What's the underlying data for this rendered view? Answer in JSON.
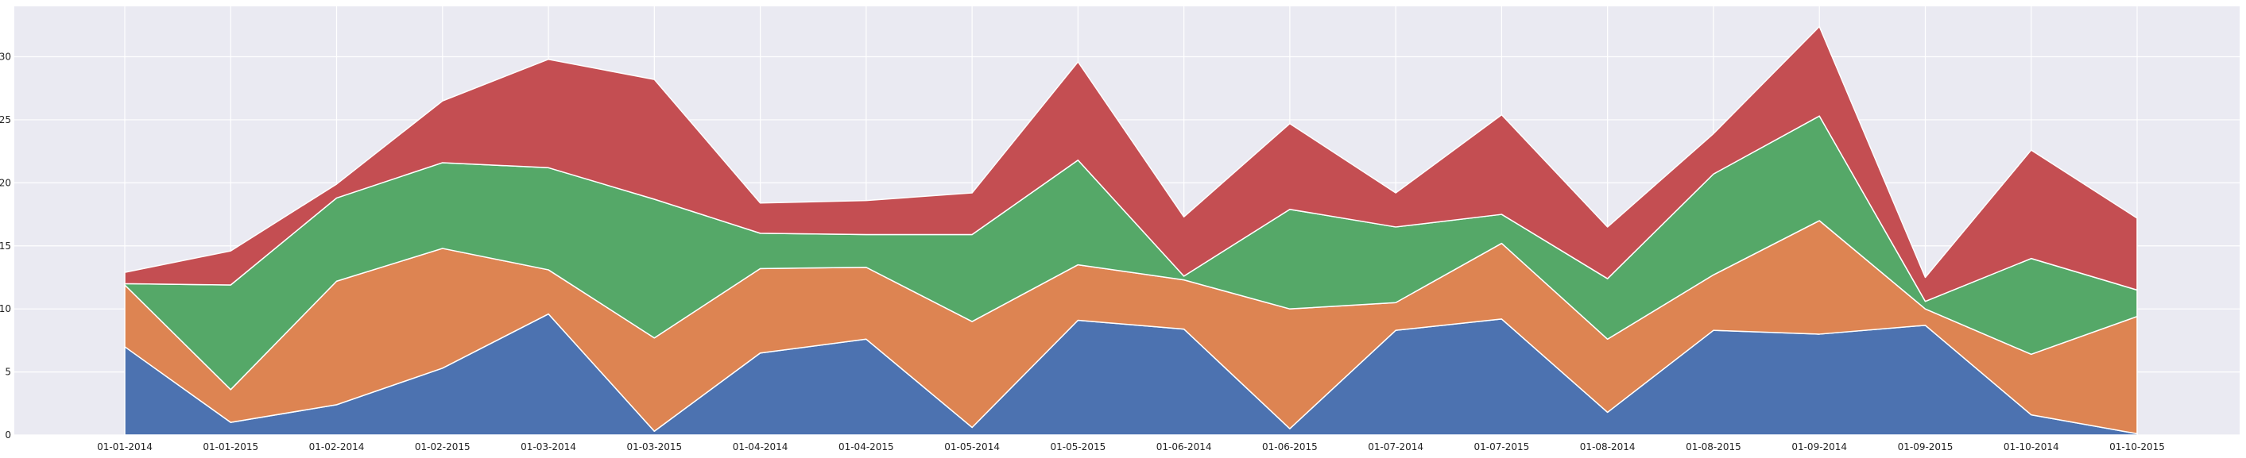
{
  "chart_data": {
    "type": "area",
    "stacked": true,
    "title": "",
    "xlabel": "",
    "ylabel": "",
    "categories": [
      "01-01-2014",
      "01-01-2015",
      "01-02-2014",
      "01-02-2015",
      "01-03-2014",
      "01-03-2015",
      "01-04-2014",
      "01-04-2015",
      "01-05-2014",
      "01-05-2015",
      "01-06-2014",
      "01-06-2015",
      "01-07-2014",
      "01-07-2015",
      "01-08-2014",
      "01-08-2015",
      "01-09-2014",
      "01-09-2015",
      "01-10-2014",
      "01-10-2015"
    ],
    "ylim": [
      0,
      34
    ],
    "yticks": [
      0,
      5,
      10,
      15,
      20,
      25,
      30
    ],
    "grid": true,
    "series": [
      {
        "color": "#4c72b0",
        "values": [
          7.0,
          1.0,
          2.4,
          5.3,
          9.6,
          0.3,
          6.5,
          7.6,
          0.6,
          9.1,
          8.4,
          0.5,
          8.3,
          9.2,
          1.8,
          8.3,
          8.0,
          8.7,
          1.6,
          0.1
        ]
      },
      {
        "color": "#dd8452",
        "values": [
          4.9,
          2.6,
          9.8,
          9.5,
          3.5,
          7.4,
          6.7,
          5.7,
          8.4,
          4.4,
          3.9,
          9.5,
          2.2,
          6.0,
          5.8,
          4.4,
          9.0,
          1.3,
          4.8,
          9.3
        ]
      },
      {
        "color": "#55a868",
        "values": [
          0.1,
          8.3,
          6.6,
          6.8,
          8.1,
          11.0,
          2.8,
          2.6,
          6.9,
          8.3,
          0.3,
          7.9,
          6.0,
          2.3,
          4.8,
          8.0,
          8.3,
          0.6,
          7.6,
          2.1
        ]
      },
      {
        "color": "#c44e52",
        "values": [
          0.9,
          2.7,
          1.1,
          4.9,
          8.6,
          9.5,
          2.4,
          2.7,
          3.3,
          7.8,
          4.7,
          6.8,
          2.7,
          7.9,
          4.1,
          3.2,
          7.1,
          1.9,
          8.6,
          5.7
        ]
      }
    ]
  }
}
